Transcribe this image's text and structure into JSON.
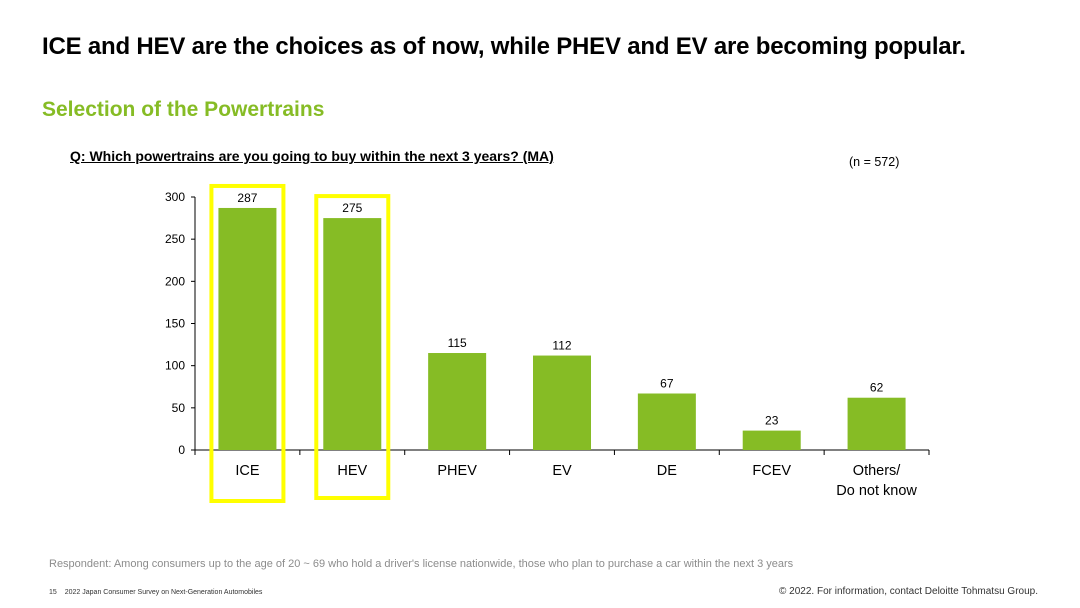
{
  "headline": "ICE and HEV are the choices as of now, while PHEV and EV are becoming popular.",
  "subheading": "Selection of the Powertrains",
  "question": "Q: Which powertrains are you going to buy within the next 3 years? (MA)",
  "sample_size": "(n = 572)",
  "chart_data": {
    "type": "bar",
    "categories": [
      "ICE",
      "HEV",
      "PHEV",
      "EV",
      "DE",
      "FCEV",
      "Others/\nDo not know"
    ],
    "values": [
      287,
      275,
      115,
      112,
      67,
      23,
      62
    ],
    "ylim": [
      0,
      300
    ],
    "yticks": [
      0,
      50,
      100,
      150,
      200,
      250,
      300
    ],
    "bar_color": "#86bc25",
    "highlight_color": "#ffff00",
    "highlighted": [
      "ICE",
      "HEV"
    ],
    "grid": false,
    "title": "",
    "xlabel": "",
    "ylabel": ""
  },
  "footnote": "Respondent: Among consumers up to the age of 20 ~ 69 who hold a driver's license nationwide, those who plan to purchase a car within the next 3 years",
  "footer": {
    "page_number": "15",
    "report_title": "2022 Japan Consumer Survey on Next-Generation Automobiles",
    "copyright": "© 2022. For information, contact Deloitte Tohmatsu Group."
  }
}
